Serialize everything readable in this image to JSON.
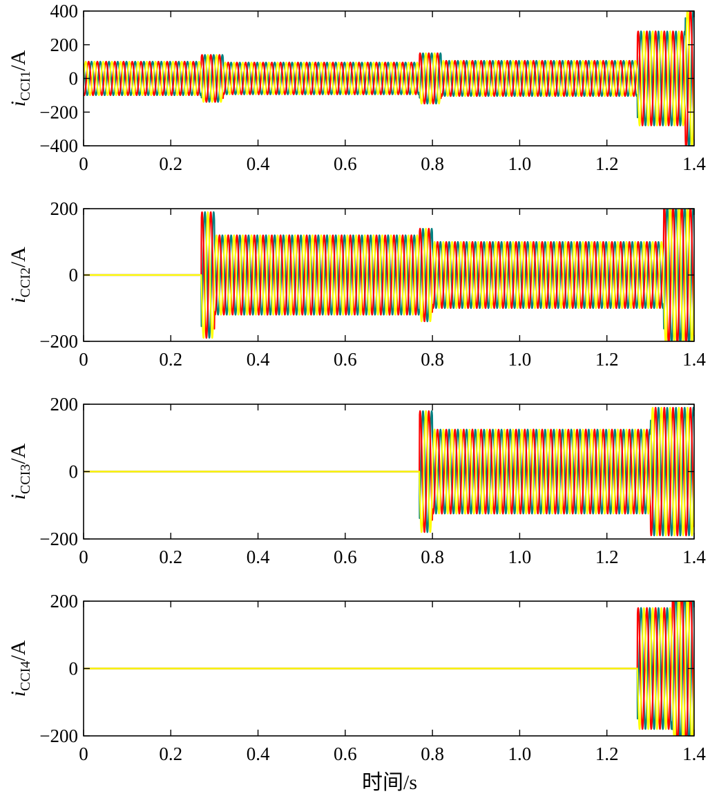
{
  "figure": {
    "xlabel": "时间/s"
  },
  "colors": {
    "phase_a": "#ffff00",
    "phase_b": "#008080",
    "phase_c": "#ff0000"
  },
  "chart_data": [
    {
      "type": "line",
      "ylabel_main": "i",
      "ylabel_sub": "CCI1",
      "ylabel_unit": "/A",
      "xlim": [
        0,
        1.4
      ],
      "ylim": [
        -400,
        400
      ],
      "xticks": [
        "0",
        "0.2",
        "0.4",
        "0.6",
        "0.8",
        "1.0",
        "1.2",
        "1.4"
      ],
      "yticks": [
        "400",
        "200",
        "0",
        "−200",
        "−400"
      ],
      "ytick_values": [
        400,
        200,
        0,
        -200,
        -400
      ],
      "series": [
        {
          "color": "#008080",
          "phase": 2.094
        },
        {
          "color": "#ff0000",
          "phase": 4.189
        },
        {
          "color": "#ffff00",
          "phase": 0
        }
      ],
      "segments": [
        {
          "t0": 0.0,
          "t1": 0.27,
          "amp": 100
        },
        {
          "t0": 0.27,
          "t1": 0.32,
          "amp": 140
        },
        {
          "t0": 0.32,
          "t1": 0.77,
          "amp": 95
        },
        {
          "t0": 0.77,
          "t1": 0.82,
          "amp": 150
        },
        {
          "t0": 0.82,
          "t1": 1.27,
          "amp": 105
        },
        {
          "t0": 1.27,
          "t1": 1.38,
          "amp": 280
        },
        {
          "t0": 1.38,
          "t1": 1.4,
          "amp": 420
        }
      ]
    },
    {
      "type": "line",
      "ylabel_main": "i",
      "ylabel_sub": "CCI2",
      "ylabel_unit": "/A",
      "xlim": [
        0,
        1.4
      ],
      "ylim": [
        -200,
        200
      ],
      "xticks": [
        "0",
        "0.2",
        "0.4",
        "0.6",
        "0.8",
        "1.0",
        "1.2",
        "1.4"
      ],
      "yticks": [
        "200",
        "0",
        "−200"
      ],
      "ytick_values": [
        200,
        0,
        -200
      ],
      "series": [
        {
          "color": "#008080",
          "phase": 2.094
        },
        {
          "color": "#ff0000",
          "phase": 4.189
        },
        {
          "color": "#ffff00",
          "phase": 0
        }
      ],
      "segments": [
        {
          "t0": 0.0,
          "t1": 0.27,
          "amp": 0
        },
        {
          "t0": 0.27,
          "t1": 0.3,
          "amp": 190
        },
        {
          "t0": 0.3,
          "t1": 0.77,
          "amp": 120
        },
        {
          "t0": 0.77,
          "t1": 0.8,
          "amp": 140
        },
        {
          "t0": 0.8,
          "t1": 1.33,
          "amp": 100
        },
        {
          "t0": 1.33,
          "t1": 1.4,
          "amp": 210
        }
      ]
    },
    {
      "type": "line",
      "ylabel_main": "i",
      "ylabel_sub": "CCI3",
      "ylabel_unit": "/A",
      "xlim": [
        0,
        1.4
      ],
      "ylim": [
        -200,
        200
      ],
      "xticks": [
        "0",
        "0.2",
        "0.4",
        "0.6",
        "0.8",
        "1.0",
        "1.2",
        "1.4"
      ],
      "yticks": [
        "200",
        "0",
        "−200"
      ],
      "ytick_values": [
        200,
        0,
        -200
      ],
      "series": [
        {
          "color": "#008080",
          "phase": 2.094
        },
        {
          "color": "#ff0000",
          "phase": 4.189
        },
        {
          "color": "#ffff00",
          "phase": 0
        }
      ],
      "segments": [
        {
          "t0": 0.0,
          "t1": 0.77,
          "amp": 0
        },
        {
          "t0": 0.77,
          "t1": 0.8,
          "amp": 180
        },
        {
          "t0": 0.8,
          "t1": 1.3,
          "amp": 125
        },
        {
          "t0": 1.3,
          "t1": 1.4,
          "amp": 190
        }
      ]
    },
    {
      "type": "line",
      "ylabel_main": "i",
      "ylabel_sub": "CCI4",
      "ylabel_unit": "/A",
      "xlim": [
        0,
        1.4
      ],
      "ylim": [
        -200,
        200
      ],
      "xticks": [
        "0",
        "0.2",
        "0.4",
        "0.6",
        "0.8",
        "1.0",
        "1.2",
        "1.4"
      ],
      "yticks": [
        "200",
        "0",
        "−200"
      ],
      "ytick_values": [
        200,
        0,
        -200
      ],
      "series": [
        {
          "color": "#008080",
          "phase": 2.094
        },
        {
          "color": "#ff0000",
          "phase": 4.189
        },
        {
          "color": "#ffff00",
          "phase": 0
        }
      ],
      "segments": [
        {
          "t0": 0.0,
          "t1": 1.27,
          "amp": 0
        },
        {
          "t0": 1.27,
          "t1": 1.35,
          "amp": 180
        },
        {
          "t0": 1.35,
          "t1": 1.4,
          "amp": 230
        }
      ]
    }
  ]
}
